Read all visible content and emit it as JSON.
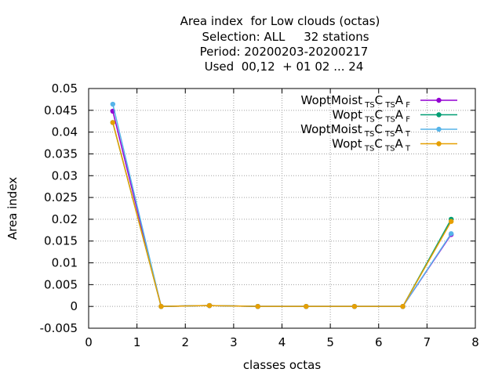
{
  "chart_data": {
    "type": "line",
    "title_lines": [
      "Area index  for Low clouds (octas)",
      "Selection: ALL     32 stations",
      "Period: 20200203-20200217",
      "Used  00,12  + 01 02 ... 24"
    ],
    "xlabel": "classes octas",
    "ylabel": "Area index",
    "xlim": [
      0,
      8
    ],
    "ylim": [
      -0.005,
      0.05
    ],
    "x_ticks": [
      0,
      1,
      2,
      3,
      4,
      5,
      6,
      7,
      8
    ],
    "y_ticks": [
      -0.005,
      0,
      0.005,
      0.01,
      0.015,
      0.02,
      0.025,
      0.03,
      0.035,
      0.04,
      0.045,
      0.05
    ],
    "y_tick_labels": [
      "-0.005",
      "0",
      "0.005",
      "0.01",
      "0.015",
      "0.02",
      "0.025",
      "0.03",
      "0.035",
      "0.04",
      "0.045",
      "0.05"
    ],
    "grid": true,
    "legend_position": "top-right",
    "x": [
      0.5,
      1.5,
      2.5,
      3.5,
      4.5,
      5.5,
      6.5,
      7.5
    ],
    "series": [
      {
        "name": "WoptMoist_{TS}C_{TS}A_{F}",
        "legend": {
          "parts": [
            {
              "t": "WoptMoist",
              "sub": false
            },
            {
              "t": "TS",
              "sub": true
            },
            {
              "t": "C",
              "sub": false
            },
            {
              "t": "TS",
              "sub": true
            },
            {
              "t": "A",
              "sub": false
            },
            {
              "t": "F",
              "sub": true
            }
          ]
        },
        "color": "#9400d3",
        "values": [
          0.0448,
          0.0,
          0.0002,
          0.0,
          0.0,
          0.0,
          0.0,
          0.0165
        ]
      },
      {
        "name": "Wopt_{TS}C_{TS}A_{F}",
        "legend": {
          "parts": [
            {
              "t": "Wopt",
              "sub": false
            },
            {
              "t": "TS",
              "sub": true
            },
            {
              "t": "C",
              "sub": false
            },
            {
              "t": "TS",
              "sub": true
            },
            {
              "t": "A",
              "sub": false
            },
            {
              "t": "F",
              "sub": true
            }
          ]
        },
        "color": "#009e73",
        "values": [
          0.0422,
          0.0,
          0.0002,
          0.0,
          0.0,
          0.0,
          0.0,
          0.02
        ]
      },
      {
        "name": "WoptMoist_{TS}C_{TS}A_{T}",
        "legend": {
          "parts": [
            {
              "t": "WoptMoist",
              "sub": false
            },
            {
              "t": "TS",
              "sub": true
            },
            {
              "t": "C",
              "sub": false
            },
            {
              "t": "TS",
              "sub": true
            },
            {
              "t": "A",
              "sub": false
            },
            {
              "t": "T",
              "sub": true
            }
          ]
        },
        "color": "#56b4e9",
        "values": [
          0.0464,
          0.0,
          0.0002,
          0.0,
          0.0,
          0.0,
          0.0,
          0.0167
        ]
      },
      {
        "name": "Wopt_{TS}C_{TS}A_{T}",
        "legend": {
          "parts": [
            {
              "t": "Wopt",
              "sub": false
            },
            {
              "t": "TS",
              "sub": true
            },
            {
              "t": "C",
              "sub": false
            },
            {
              "t": "TS",
              "sub": true
            },
            {
              "t": "A",
              "sub": false
            },
            {
              "t": "T",
              "sub": true
            }
          ]
        },
        "color": "#e69f00",
        "values": [
          0.0422,
          0.0,
          0.0002,
          0.0,
          0.0,
          0.0,
          0.0,
          0.0195
        ]
      }
    ]
  }
}
